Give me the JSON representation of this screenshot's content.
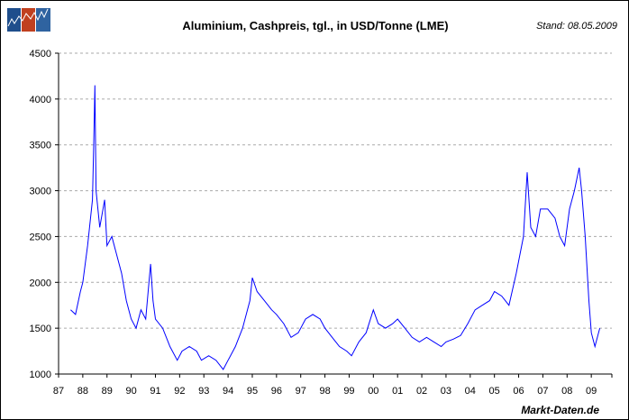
{
  "header": {
    "title": "Aluminium, Cashpreis, tgl., in USD/Tonne (LME)",
    "stand": "Stand: 08.05.2009"
  },
  "footer": {
    "source": "Markt-Daten.de"
  },
  "logo": {
    "name": "chart-logo-icon",
    "colors": [
      "#1f4e8c",
      "#c0401f",
      "#2f63a0"
    ]
  },
  "chart_data": {
    "type": "line",
    "title": "Aluminium, Cashpreis, tgl., in USD/Tonne (LME)",
    "xlabel": "",
    "ylabel": "",
    "ylim": [
      1000,
      4500
    ],
    "xlim": [
      1987,
      2009.85
    ],
    "yticks": [
      1000,
      1500,
      2000,
      2500,
      3000,
      3500,
      4000,
      4500
    ],
    "xtick_labels": [
      "87",
      "88",
      "89",
      "90",
      "91",
      "92",
      "93",
      "94",
      "95",
      "96",
      "97",
      "98",
      "99",
      "00",
      "01",
      "02",
      "03",
      "04",
      "05",
      "06",
      "07",
      "08",
      "09"
    ],
    "grid": "horizontal dashed",
    "line_color": "#0000ff",
    "series": [
      {
        "x": [
          1987.5,
          1987.7,
          1987.9,
          1988.0,
          1988.2,
          1988.4,
          1988.45,
          1988.5,
          1988.55,
          1988.7,
          1988.9,
          1989.0,
          1989.2,
          1989.4,
          1989.6,
          1989.8,
          1990.0,
          1990.2,
          1990.4,
          1990.6,
          1990.7,
          1990.8,
          1990.9,
          1991.0,
          1991.3,
          1991.6,
          1991.9,
          1992.1,
          1992.4,
          1992.7,
          1992.9,
          1993.2,
          1993.5,
          1993.8,
          1994.0,
          1994.3,
          1994.6,
          1994.9,
          1995.0,
          1995.2,
          1995.5,
          1995.8,
          1996.0,
          1996.3,
          1996.6,
          1996.9,
          1997.2,
          1997.5,
          1997.8,
          1998.0,
          1998.3,
          1998.6,
          1998.9,
          1999.1,
          1999.4,
          1999.7,
          2000.0,
          2000.2,
          2000.5,
          2000.8,
          2001.0,
          2001.3,
          2001.6,
          2001.9,
          2002.2,
          2002.5,
          2002.8,
          2003.0,
          2003.3,
          2003.6,
          2003.9,
          2004.2,
          2004.5,
          2004.8,
          2005.0,
          2005.3,
          2005.6,
          2005.9,
          2006.2,
          2006.35,
          2006.5,
          2006.7,
          2006.9,
          2007.2,
          2007.5,
          2007.7,
          2007.9,
          2008.1,
          2008.3,
          2008.5,
          2008.6,
          2008.75,
          2008.9,
          2009.0,
          2009.15,
          2009.3,
          2009.35
        ],
        "y": [
          1700,
          1650,
          1900,
          2000,
          2400,
          2900,
          3500,
          4150,
          3000,
          2600,
          2900,
          2400,
          2500,
          2300,
          2100,
          1800,
          1600,
          1500,
          1700,
          1600,
          1900,
          2200,
          1800,
          1600,
          1500,
          1300,
          1150,
          1250,
          1300,
          1250,
          1150,
          1200,
          1150,
          1050,
          1150,
          1300,
          1500,
          1800,
          2050,
          1900,
          1800,
          1700,
          1650,
          1550,
          1400,
          1450,
          1600,
          1650,
          1600,
          1500,
          1400,
          1300,
          1250,
          1200,
          1350,
          1450,
          1700,
          1550,
          1500,
          1550,
          1600,
          1500,
          1400,
          1350,
          1400,
          1350,
          1300,
          1350,
          1380,
          1420,
          1550,
          1700,
          1750,
          1800,
          1900,
          1850,
          1750,
          2100,
          2500,
          3200,
          2600,
          2500,
          2800,
          2800,
          2700,
          2500,
          2400,
          2800,
          3000,
          3250,
          3000,
          2500,
          1800,
          1450,
          1300,
          1450,
          1500
        ]
      }
    ]
  }
}
